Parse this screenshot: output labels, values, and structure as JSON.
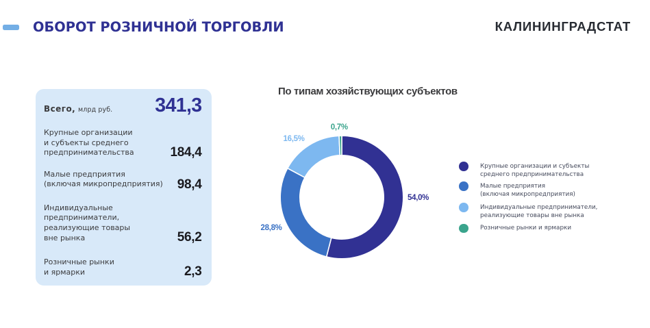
{
  "header": {
    "title": "ОБОРОТ РОЗНИЧНОЙ ТОРГОВЛИ",
    "logo": "КАЛИНИНГРАДСТАТ"
  },
  "colors": {
    "accent_dash": "#73AEE5",
    "title": "#2F3193",
    "logo_text": "#272B32",
    "panel_bg": "#D8E9F9",
    "panel_label": "#3B3B3D",
    "panel_value": "#1A1A1F",
    "total_value": "#2F3193",
    "chart_title": "#3B3B3D",
    "legend_text": "#454A5C",
    "slice_large": "#313193",
    "slice_small": "#3A72C5",
    "slice_individual": "#7DB8F0",
    "slice_markets": "#3AA48C"
  },
  "panel": {
    "total": {
      "label_bold": "Всего,",
      "label_unit": "млрд руб.",
      "value": "341,3"
    },
    "rows": [
      {
        "label_lines": [
          "Крупные организации",
          "и субъекты среднего",
          "предпринимательства"
        ],
        "value": "184,4"
      },
      {
        "label_lines": [
          "Малые предприятия",
          "(включая микропредприятия)"
        ],
        "value": "98,4"
      },
      {
        "label_lines": [
          "Индивидуальные",
          "предприниматели,",
          "реализующие товары",
          "вне рынка"
        ],
        "value": "56,2"
      },
      {
        "label_lines": [
          "Розничные рынки",
          "и ярмарки"
        ],
        "value": "2,3"
      }
    ]
  },
  "chart_data": {
    "type": "pie",
    "subtype": "donut",
    "title": "По типам хозяйствующих субъектов",
    "unit": "%",
    "slices": [
      {
        "label": "Крупные организации и субъекты среднего предпринимательства",
        "value": 54.0,
        "display": "54,0%",
        "color": "#313193"
      },
      {
        "label": "Малые предприятия (включая микропредприятия)",
        "value": 28.8,
        "display": "28,8%",
        "color": "#3A72C5"
      },
      {
        "label": "Индивидуальные предприниматели, реализующие товары вне рынка",
        "value": 16.5,
        "display": "16,5%",
        "color": "#7DB8F0"
      },
      {
        "label": "Розничные рынки и ярмарки",
        "value": 0.7,
        "display": "0,7%",
        "color": "#3AA48C"
      }
    ],
    "legend_position": "right",
    "start_angle_deg": 0,
    "direction": "clockwise"
  },
  "legend": {
    "items": [
      {
        "lines": [
          "Крупные организации и субъекты",
          "среднего предпринимательства"
        ],
        "color": "#313193"
      },
      {
        "lines": [
          "Малые предприятия",
          "(включая микропредприятия)"
        ],
        "color": "#3A72C5"
      },
      {
        "lines": [
          "Индивидуальные предприниматели,",
          "реализующие товары вне рынка"
        ],
        "color": "#7DB8F0"
      },
      {
        "lines": [
          "Розничные рынки и ярмарки"
        ],
        "color": "#3AA48C"
      }
    ]
  }
}
